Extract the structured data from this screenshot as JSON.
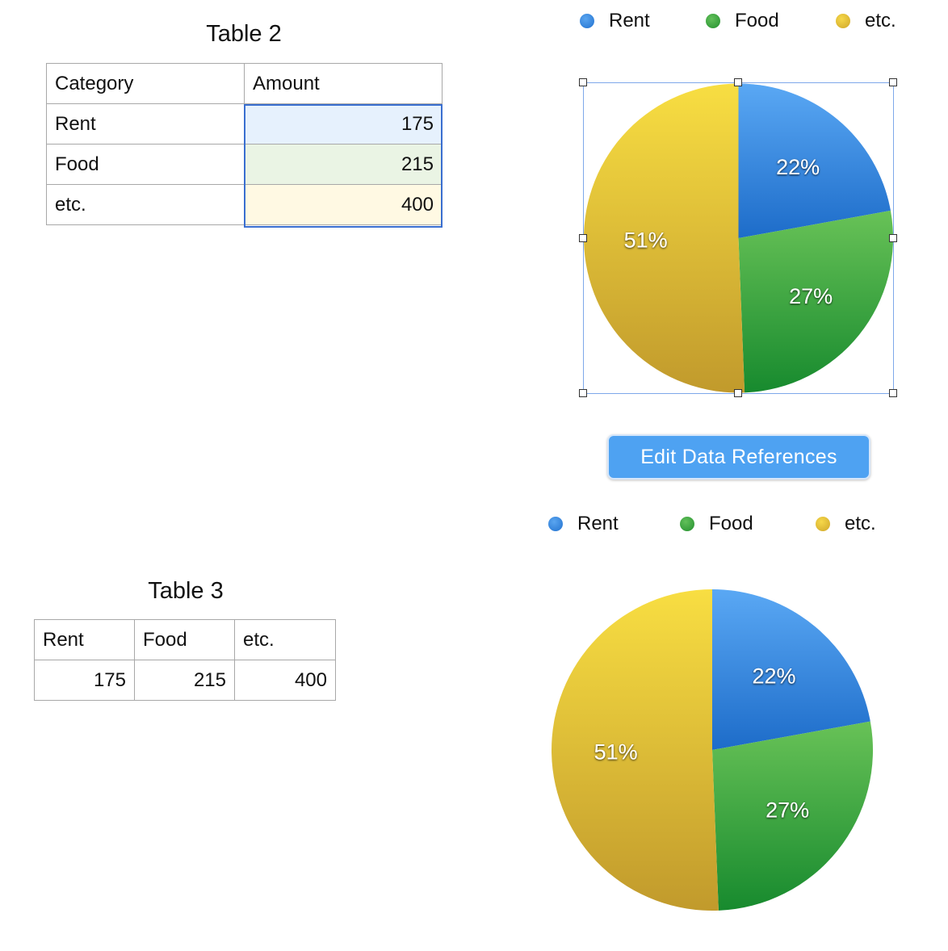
{
  "table2": {
    "title": "Table 2",
    "headers": [
      "Category",
      "Amount"
    ],
    "rows": [
      {
        "label": "Rent",
        "value": "175"
      },
      {
        "label": "Food",
        "value": "215"
      },
      {
        "label": "etc.",
        "value": "400"
      }
    ]
  },
  "table3": {
    "title": "Table 3",
    "headers": [
      "Rent",
      "Food",
      "etc."
    ],
    "values": [
      "175",
      "215",
      "400"
    ]
  },
  "edit_button": {
    "label": "Edit Data References"
  },
  "colors": {
    "rent": "#2b7fdc",
    "food": "#3aa43a",
    "etc": "#e5c12d"
  },
  "chart_data": [
    {
      "type": "pie",
      "categories": [
        "Rent",
        "Food",
        "etc."
      ],
      "values": [
        175,
        215,
        400
      ],
      "percent_labels": [
        "22%",
        "27%",
        "51%"
      ],
      "legend": "top",
      "selected": true
    },
    {
      "type": "pie",
      "categories": [
        "Rent",
        "Food",
        "etc."
      ],
      "values": [
        175,
        215,
        400
      ],
      "percent_labels": [
        "22%",
        "27%",
        "51%"
      ],
      "legend": "top",
      "selected": false
    }
  ]
}
